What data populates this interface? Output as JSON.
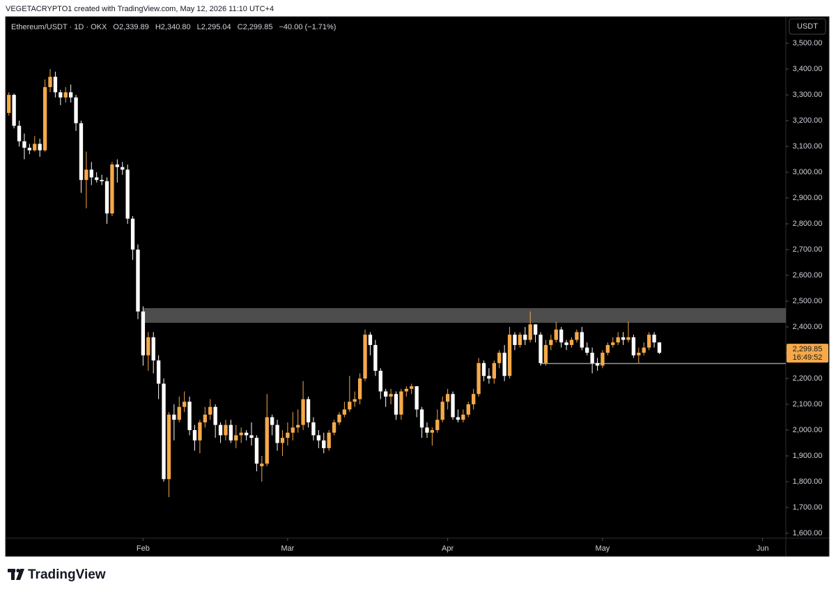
{
  "header": {
    "credit": "VEGETACRYPTO1 created with TradingView.com, May 12, 2026 11:10 UTC+4"
  },
  "footer": {
    "brand": "TradingView"
  },
  "chart_data": {
    "type": "candlestick",
    "title": "Ethereum/USDT · 1D · OKX",
    "legend_values": [
      "O2,339.89",
      "H2,340.80",
      "L2,295.04",
      "C2,299.85",
      "−40.00 (−1.71%)"
    ],
    "axis_unit": "USDT",
    "categories": [
      null,
      null,
      null,
      null,
      null,
      null,
      null,
      null,
      null,
      null,
      null,
      null,
      null,
      null,
      null,
      null,
      null,
      null,
      null,
      null,
      null,
      null,
      null,
      null,
      null,
      null,
      "Feb",
      null,
      null,
      null,
      null,
      null,
      null,
      null,
      null,
      null,
      null,
      null,
      null,
      null,
      null,
      null,
      null,
      null,
      null,
      null,
      null,
      null,
      null,
      null,
      null,
      null,
      null,
      null,
      "Mar",
      null,
      null,
      null,
      null,
      null,
      null,
      null,
      null,
      null,
      null,
      null,
      null,
      null,
      null,
      null,
      null,
      null,
      null,
      null,
      null,
      null,
      null,
      null,
      null,
      null,
      null,
      null,
      null,
      null,
      null,
      "Apr",
      null,
      null,
      null,
      null,
      null,
      null,
      null,
      null,
      null,
      null,
      null,
      null,
      null,
      null,
      null,
      null,
      null,
      null,
      null,
      null,
      null,
      null,
      null,
      null,
      null,
      null,
      null,
      null,
      null,
      "May",
      null,
      null,
      null,
      null,
      null,
      null,
      null,
      null,
      null,
      null,
      null,
      null,
      null,
      null,
      null,
      null,
      null,
      null,
      null,
      null,
      null,
      null,
      null,
      null,
      null,
      null,
      null,
      null,
      null,
      null,
      "Jun",
      null,
      null,
      null,
      null
    ],
    "open": [
      3230,
      3300,
      3180,
      3120,
      3095,
      3085,
      3110,
      3085,
      3330,
      3370,
      3310,
      3290,
      3310,
      3290,
      3190,
      2970,
      3010,
      2980,
      2970,
      2965,
      2840,
      3030,
      3020,
      3010,
      2820,
      2700,
      2460,
      2290,
      2360,
      2270,
      2180,
      1810,
      2060,
      2040,
      2090,
      2110,
      2000,
      1960,
      2030,
      2060,
      2090,
      2020,
      1980,
      2020,
      1960,
      1980,
      1990,
      1980,
      1970,
      1860,
      1870,
      2050,
      2020,
      1950,
      1970,
      1990,
      2010,
      2020,
      2120,
      2030,
      1980,
      1960,
      1930,
      1990,
      2030,
      2060,
      2080,
      2110,
      2120,
      2200,
      2370,
      2330,
      2230,
      2150,
      2130,
      2140,
      2060,
      2150,
      2160,
      2170,
      2080,
      2010,
      1990,
      2000,
      2040,
      2110,
      2140,
      2050,
      2040,
      2060,
      2100,
      2140,
      2260,
      2210,
      2200,
      2260,
      2300,
      2210,
      2370,
      2330,
      2370,
      2350,
      2410,
      2370,
      2260,
      2330,
      2350,
      2390,
      2340,
      2330,
      2350,
      2380,
      2320,
      2300,
      2260,
      2250,
      2300,
      2330,
      2340,
      2360,
      2350,
      2360,
      2290,
      2300,
      2320,
      2370,
      2339.89,
      null,
      null,
      null,
      null,
      null,
      null,
      null,
      null,
      null,
      null,
      null,
      null,
      null,
      null,
      null,
      null,
      null,
      null,
      null,
      null,
      null,
      null,
      null,
      null
    ],
    "high": [
      3310,
      3305,
      3200,
      3150,
      3110,
      3140,
      3130,
      3360,
      3400,
      3390,
      3320,
      3330,
      3340,
      3300,
      3200,
      3080,
      3040,
      3000,
      2990,
      2980,
      3040,
      3050,
      3040,
      3030,
      2830,
      2720,
      2480,
      2380,
      2380,
      2290,
      2200,
      2070,
      2100,
      2130,
      2150,
      2130,
      2020,
      2040,
      2090,
      2120,
      2100,
      2030,
      2040,
      2040,
      2020,
      2010,
      2000,
      2030,
      1980,
      1900,
      2140,
      2060,
      2040,
      2000,
      2030,
      2070,
      2080,
      2190,
      2130,
      2050,
      2000,
      1990,
      2000,
      2040,
      2070,
      2110,
      2210,
      2150,
      2220,
      2390,
      2380,
      2350,
      2240,
      2160,
      2160,
      2150,
      2160,
      2170,
      2180,
      2170,
      2090,
      2030,
      2010,
      2080,
      2130,
      2160,
      2150,
      2080,
      2080,
      2110,
      2160,
      2280,
      2270,
      2240,
      2270,
      2310,
      2330,
      2400,
      2380,
      2380,
      2400,
      2460,
      2410,
      2380,
      2350,
      2370,
      2420,
      2400,
      2350,
      2360,
      2390,
      2400,
      2340,
      2320,
      2280,
      2310,
      2340,
      2360,
      2380,
      2380,
      2420,
      2370,
      2320,
      2340,
      2380,
      2380,
      2340.8,
      null,
      null,
      null,
      null,
      null,
      null,
      null,
      null,
      null,
      null,
      null,
      null,
      null,
      null,
      null,
      null,
      null,
      null,
      null,
      null,
      null,
      null,
      null,
      null
    ],
    "low": [
      3220,
      3170,
      3100,
      3050,
      3070,
      3080,
      3060,
      3080,
      3310,
      3290,
      3260,
      3270,
      3270,
      3160,
      2920,
      2860,
      2950,
      2960,
      2950,
      2800,
      2830,
      2960,
      2990,
      2800,
      2660,
      2430,
      2250,
      2230,
      2220,
      2120,
      1800,
      1740,
      1960,
      2030,
      2070,
      1980,
      1920,
      1910,
      2010,
      2040,
      1970,
      1950,
      1960,
      1950,
      1930,
      1950,
      1960,
      1940,
      1840,
      1800,
      1860,
      1980,
      1920,
      1900,
      1940,
      1960,
      1990,
      2000,
      2010,
      1960,
      1930,
      1910,
      1920,
      1980,
      2020,
      2050,
      2070,
      2090,
      2100,
      2190,
      2290,
      2210,
      2120,
      2090,
      2100,
      2040,
      2040,
      2130,
      2140,
      2050,
      1970,
      1970,
      1940,
      1990,
      2030,
      2080,
      2040,
      2030,
      2030,
      2050,
      2080,
      2130,
      2190,
      2180,
      2180,
      2240,
      2190,
      2200,
      2310,
      2320,
      2330,
      2340,
      2340,
      2250,
      2250,
      2310,
      2340,
      2320,
      2310,
      2320,
      2340,
      2310,
      2290,
      2220,
      2230,
      2240,
      2290,
      2320,
      2330,
      2330,
      2340,
      2280,
      2260,
      2290,
      2310,
      2320,
      2295.04,
      null,
      null,
      null,
      null,
      null,
      null,
      null,
      null,
      null,
      null,
      null,
      null,
      null,
      null,
      null,
      null,
      null,
      null,
      null,
      null,
      null,
      null,
      null,
      null
    ],
    "close": [
      3300,
      3180,
      3120,
      3095,
      3085,
      3110,
      3085,
      3330,
      3370,
      3310,
      3290,
      3310,
      3290,
      3190,
      2970,
      3010,
      2980,
      2970,
      2965,
      2840,
      3030,
      3020,
      3010,
      2820,
      2700,
      2460,
      2290,
      2360,
      2270,
      2180,
      1810,
      2060,
      2040,
      2090,
      2110,
      2000,
      1960,
      2030,
      2060,
      2090,
      2020,
      1980,
      2020,
      1960,
      1980,
      1990,
      1980,
      1970,
      1870,
      1870,
      2050,
      2020,
      1950,
      1970,
      1990,
      2010,
      2020,
      2120,
      2030,
      1980,
      1960,
      1930,
      1990,
      2030,
      2060,
      2080,
      2110,
      2120,
      2200,
      2370,
      2330,
      2230,
      2150,
      2130,
      2140,
      2060,
      2150,
      2160,
      2170,
      2080,
      2010,
      1990,
      2000,
      2040,
      2110,
      2140,
      2050,
      2040,
      2060,
      2100,
      2140,
      2260,
      2210,
      2200,
      2260,
      2300,
      2210,
      2370,
      2330,
      2370,
      2350,
      2410,
      2370,
      2260,
      2330,
      2350,
      2390,
      2340,
      2330,
      2350,
      2380,
      2320,
      2300,
      2260,
      2250,
      2300,
      2330,
      2340,
      2360,
      2350,
      2360,
      2290,
      2300,
      2320,
      2370,
      2340,
      2299.85,
      null,
      null,
      null,
      null,
      null,
      null,
      null,
      null,
      null,
      null,
      null,
      null,
      null,
      null,
      null,
      null,
      null,
      null,
      null,
      null,
      null,
      null,
      null,
      null
    ],
    "up_color": "#f5a94a",
    "down_color": "#ffffff",
    "ylim": [
      1581,
      3603
    ],
    "yticks": [
      {
        "value": 1600,
        "label": "1,600.00"
      },
      {
        "value": 1700,
        "label": "1,700.00"
      },
      {
        "value": 1800,
        "label": "1,800.00"
      },
      {
        "value": 1900,
        "label": "1,900.00"
      },
      {
        "value": 2000,
        "label": "2,000.00"
      },
      {
        "value": 2100,
        "label": "2,100.00"
      },
      {
        "value": 2200,
        "label": "2,200.00"
      },
      {
        "value": 2300,
        "label": "2,300.00"
      },
      {
        "value": 2400,
        "label": "2,400.00"
      },
      {
        "value": 2500,
        "label": "2,500.00"
      },
      {
        "value": 2600,
        "label": "2,600.00"
      },
      {
        "value": 2700,
        "label": "2,700.00"
      },
      {
        "value": 2800,
        "label": "2,800.00"
      },
      {
        "value": 2900,
        "label": "2,900.00"
      },
      {
        "value": 3000,
        "label": "3,000.00"
      },
      {
        "value": 3100,
        "label": "3,100.00"
      },
      {
        "value": 3200,
        "label": "3,200.00"
      },
      {
        "value": 3300,
        "label": "3,300.00"
      },
      {
        "value": 3400,
        "label": "3,400.00"
      },
      {
        "value": 3500,
        "label": "3,500.00"
      }
    ],
    "resistance_zone": {
      "low": 2416,
      "high": 2473
    },
    "support_level": 2258,
    "last_price": {
      "value": 2299.85,
      "label": "2,299.85"
    },
    "countdown": "16:49:52"
  }
}
